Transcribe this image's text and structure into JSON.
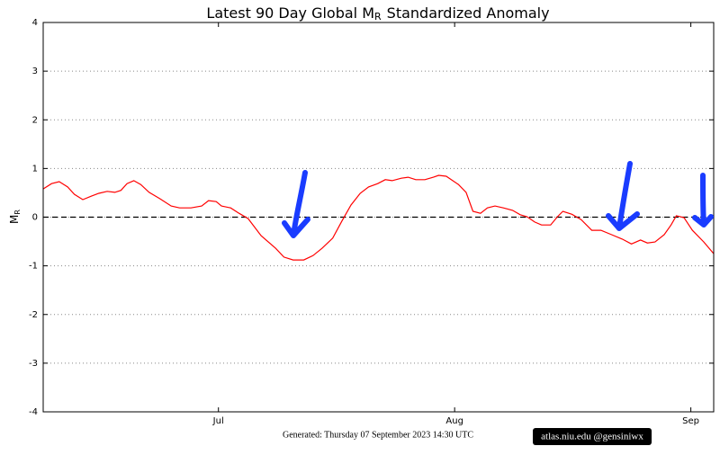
{
  "chart_data": {
    "type": "line",
    "title": "Latest 90 Day Global M",
    "title_subscript": "R",
    "title_suffix": "Standardized Anomaly",
    "ylabel": "M",
    "ylabel_subscript": "R",
    "x": [
      0,
      1.1,
      2.1,
      3.2,
      4.1,
      5.2,
      6.3,
      7.3,
      8.4,
      9.4,
      10.2,
      11,
      11.9,
      12.8,
      13.9,
      15.3,
      16.8,
      17.9,
      19.4,
      20.8,
      21.7,
      22.7,
      23.4,
      24.6,
      25.7,
      26.9,
      28.6,
      30.5,
      31.6,
      32.8,
      34.2,
      35.4,
      36.6,
      38,
      39.2,
      40.4,
      41.6,
      42.7,
      43.9,
      44.9,
      45.8,
      47,
      47.9,
      48.9,
      50.1,
      51.2,
      51.9,
      52.9,
      54.5,
      55.5,
      56.4,
      57.4,
      58.3,
      59.3,
      60.4,
      61.6,
      62.6,
      63.5,
      64.5,
      65.4,
      66.6,
      67.5,
      68.2,
      69.4,
      70.6,
      72,
      73.2,
      74.6,
      76,
      77.2,
      78.4,
      79.3,
      80.3,
      81.5,
      82.4,
      83.1,
      84.1,
      85.2,
      86.7,
      88
    ],
    "values": [
      0.58,
      0.69,
      0.73,
      0.62,
      0.47,
      0.36,
      0.43,
      0.49,
      0.53,
      0.51,
      0.55,
      0.69,
      0.75,
      0.67,
      0.51,
      0.38,
      0.23,
      0.19,
      0.19,
      0.23,
      0.34,
      0.32,
      0.23,
      0.19,
      0.08,
      -0.03,
      -0.38,
      -0.64,
      -0.82,
      -0.88,
      -0.88,
      -0.79,
      -0.64,
      -0.43,
      -0.08,
      0.25,
      0.49,
      0.62,
      0.69,
      0.77,
      0.75,
      0.8,
      0.82,
      0.77,
      0.77,
      0.82,
      0.86,
      0.84,
      0.67,
      0.51,
      0.12,
      0.08,
      0.19,
      0.23,
      0.19,
      0.14,
      0.05,
      0.01,
      -0.1,
      -0.16,
      -0.16,
      0.01,
      0.12,
      0.06,
      -0.05,
      -0.27,
      -0.27,
      -0.36,
      -0.45,
      -0.55,
      -0.47,
      -0.53,
      -0.51,
      -0.36,
      -0.16,
      0.03,
      -0.01,
      -0.27,
      -0.51,
      -0.75
    ],
    "color": "#ff0000",
    "xlim": [
      0,
      88
    ],
    "xticks": [
      {
        "value": 23,
        "label": "Jul"
      },
      {
        "value": 54,
        "label": "Aug"
      },
      {
        "value": 85,
        "label": "Sep"
      }
    ],
    "ylim": [
      -4,
      4
    ],
    "yticks": [
      -4,
      -3,
      -2,
      -1,
      0,
      1,
      2,
      3,
      4
    ],
    "grid": true,
    "reference_line": 0,
    "footer": "Generated: Thursday  07  September  2023  14:30 UTC",
    "watermark": "atlas.niu.edu  @gensiniwx"
  }
}
